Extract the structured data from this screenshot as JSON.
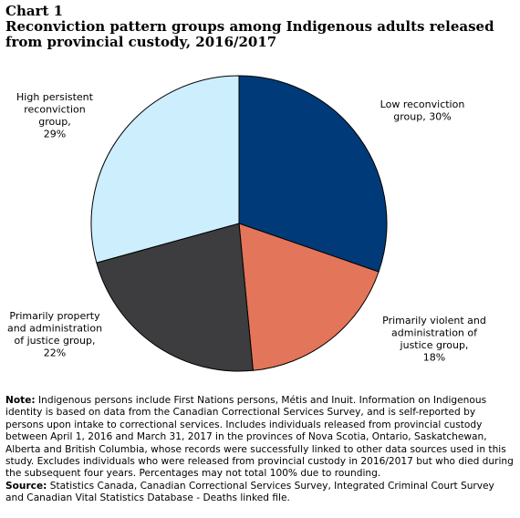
{
  "chart_data": {
    "type": "pie",
    "chart_number": "Chart 1",
    "title": "Reconviction pattern groups among Indigenous adults released from provincial custody, 2016/2017",
    "categories": [
      "Low reconviction group",
      "Primarily violent and administration of justice group",
      "Primarily property and administration of justice group",
      "High persistent reconviction group"
    ],
    "values": [
      30,
      18,
      22,
      29
    ],
    "value_labels": [
      [
        "Low reconviction",
        "group, 30%"
      ],
      [
        "Primarily violent and",
        "administration of",
        "justice group,",
        "18%"
      ],
      [
        "Primarily property",
        "and administration",
        "of justice group,",
        "22%"
      ],
      [
        "High persistent",
        "reconviction",
        "group,",
        "29%"
      ]
    ],
    "colors": [
      "#003a78",
      "#e2755a",
      "#3d3d3f",
      "#cdeefd"
    ],
    "note_label": "Note:",
    "note": "Indigenous persons include First Nations persons, Métis and Inuit. Information on Indigenous identity is based on data from the Canadian Correctional Services Survey, and is self-reported by persons upon intake to correctional services. Includes individuals released from provincial custody between April 1, 2016 and March 31, 2017 in the provinces of Nova Scotia, Ontario, Saskatchewan, Alberta and British Columbia, whose records were successfully linked to other data sources used in this study. Excludes individuals who were released from provincial custody in 2016/2017 but who died during the subsequent four years. Percentages may not total 100% due to rounding.",
    "source_label": "Source:",
    "source": "Statistics Canada, Canadian Correctional Services Survey, Integrated Criminal Court Survey and Canadian Vital Statistics Database - Deaths linked file."
  }
}
